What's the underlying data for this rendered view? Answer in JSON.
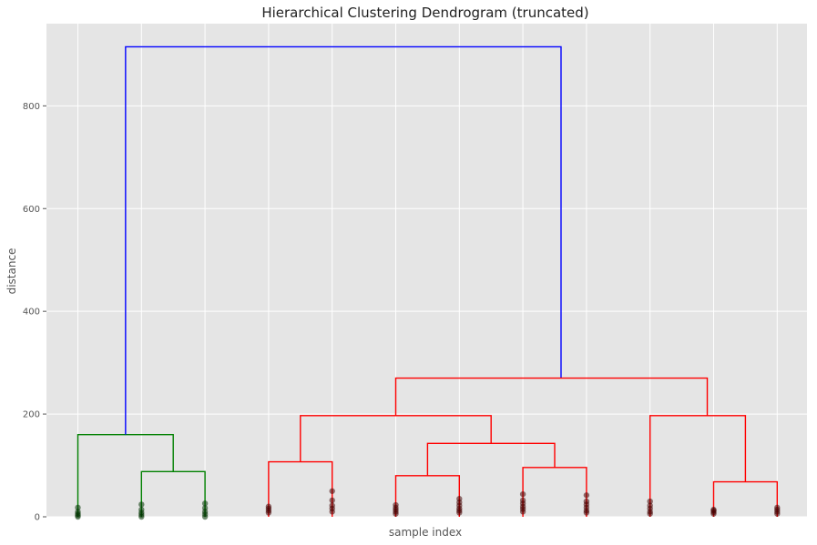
{
  "chart_data": {
    "type": "dendrogram",
    "title": "Hierarchical Clustering Dendrogram (truncated)",
    "xlabel": "sample index",
    "ylabel": "distance",
    "ylim": [
      0,
      960
    ],
    "y_ticks": [
      0,
      200,
      400,
      600,
      800
    ],
    "grid": true,
    "background": "#e5e5e5",
    "grid_color": "#ffffff",
    "leaf_count": 12,
    "links": [
      {
        "name": "link-green-1",
        "x": [
          1,
          1,
          2.5,
          2.5
        ],
        "y": [
          0,
          160,
          160,
          88
        ],
        "color": "#008000"
      },
      {
        "name": "link-green-2",
        "x": [
          2,
          2,
          3,
          3
        ],
        "y": [
          0,
          88,
          88,
          0
        ],
        "color": "#008000"
      },
      {
        "name": "link-blue-root",
        "x": [
          1.75,
          1.75,
          8.6,
          8.6
        ],
        "y": [
          160,
          915,
          915,
          270
        ],
        "color": "#0000ff"
      },
      {
        "name": "link-red-top",
        "x": [
          6.0,
          6.0,
          10.9,
          10.9
        ],
        "y": [
          197,
          270,
          270,
          197
        ],
        "color": "#ff0000"
      },
      {
        "name": "link-red-2",
        "x": [
          4.5,
          4.5,
          7.5,
          7.5
        ],
        "y": [
          107,
          197,
          197,
          143
        ],
        "color": "#ff0000"
      },
      {
        "name": "link-red-3",
        "x": [
          4,
          4,
          5,
          5
        ],
        "y": [
          0,
          107,
          107,
          0
        ],
        "color": "#ff0000"
      },
      {
        "name": "link-red-4",
        "x": [
          6.5,
          6.5,
          8.5,
          8.5
        ],
        "y": [
          80,
          143,
          143,
          96
        ],
        "color": "#ff0000"
      },
      {
        "name": "link-red-5",
        "x": [
          6,
          6,
          7,
          7
        ],
        "y": [
          0,
          80,
          80,
          0
        ],
        "color": "#ff0000"
      },
      {
        "name": "link-red-6",
        "x": [
          8,
          8,
          9,
          9
        ],
        "y": [
          0,
          96,
          96,
          0
        ],
        "color": "#ff0000"
      },
      {
        "name": "link-red-7",
        "x": [
          10,
          10,
          11.5,
          11.5
        ],
        "y": [
          0,
          197,
          197,
          68
        ],
        "color": "#ff0000"
      },
      {
        "name": "link-red-8",
        "x": [
          11,
          11,
          12,
          12
        ],
        "y": [
          0,
          68,
          68,
          0
        ],
        "color": "#ff0000"
      }
    ],
    "leaf_points": [
      {
        "x": 1,
        "y": [
          0,
          3,
          6,
          10,
          18
        ],
        "color": "#003300"
      },
      {
        "x": 2,
        "y": [
          0,
          4,
          8,
          14,
          24
        ],
        "color": "#003300"
      },
      {
        "x": 3,
        "y": [
          0,
          5,
          10,
          17,
          26
        ],
        "color": "#003300"
      },
      {
        "x": 4,
        "y": [
          8,
          12,
          16,
          20
        ],
        "color": "#440000"
      },
      {
        "x": 5,
        "y": [
          10,
          16,
          22,
          32,
          50
        ],
        "color": "#440000"
      },
      {
        "x": 6,
        "y": [
          6,
          10,
          14,
          18,
          23
        ],
        "color": "#440000"
      },
      {
        "x": 7,
        "y": [
          8,
          12,
          16,
          22,
          28,
          35
        ],
        "color": "#440000"
      },
      {
        "x": 8,
        "y": [
          10,
          15,
          20,
          26,
          32,
          44
        ],
        "color": "#440000"
      },
      {
        "x": 9,
        "y": [
          8,
          12,
          18,
          24,
          30,
          42
        ],
        "color": "#440000"
      },
      {
        "x": 10,
        "y": [
          6,
          10,
          16,
          22,
          30
        ],
        "color": "#440000"
      },
      {
        "x": 11,
        "y": [
          6,
          9,
          12,
          14
        ],
        "color": "#440000"
      },
      {
        "x": 12,
        "y": [
          6,
          10,
          14,
          18
        ],
        "color": "#440000"
      }
    ]
  }
}
